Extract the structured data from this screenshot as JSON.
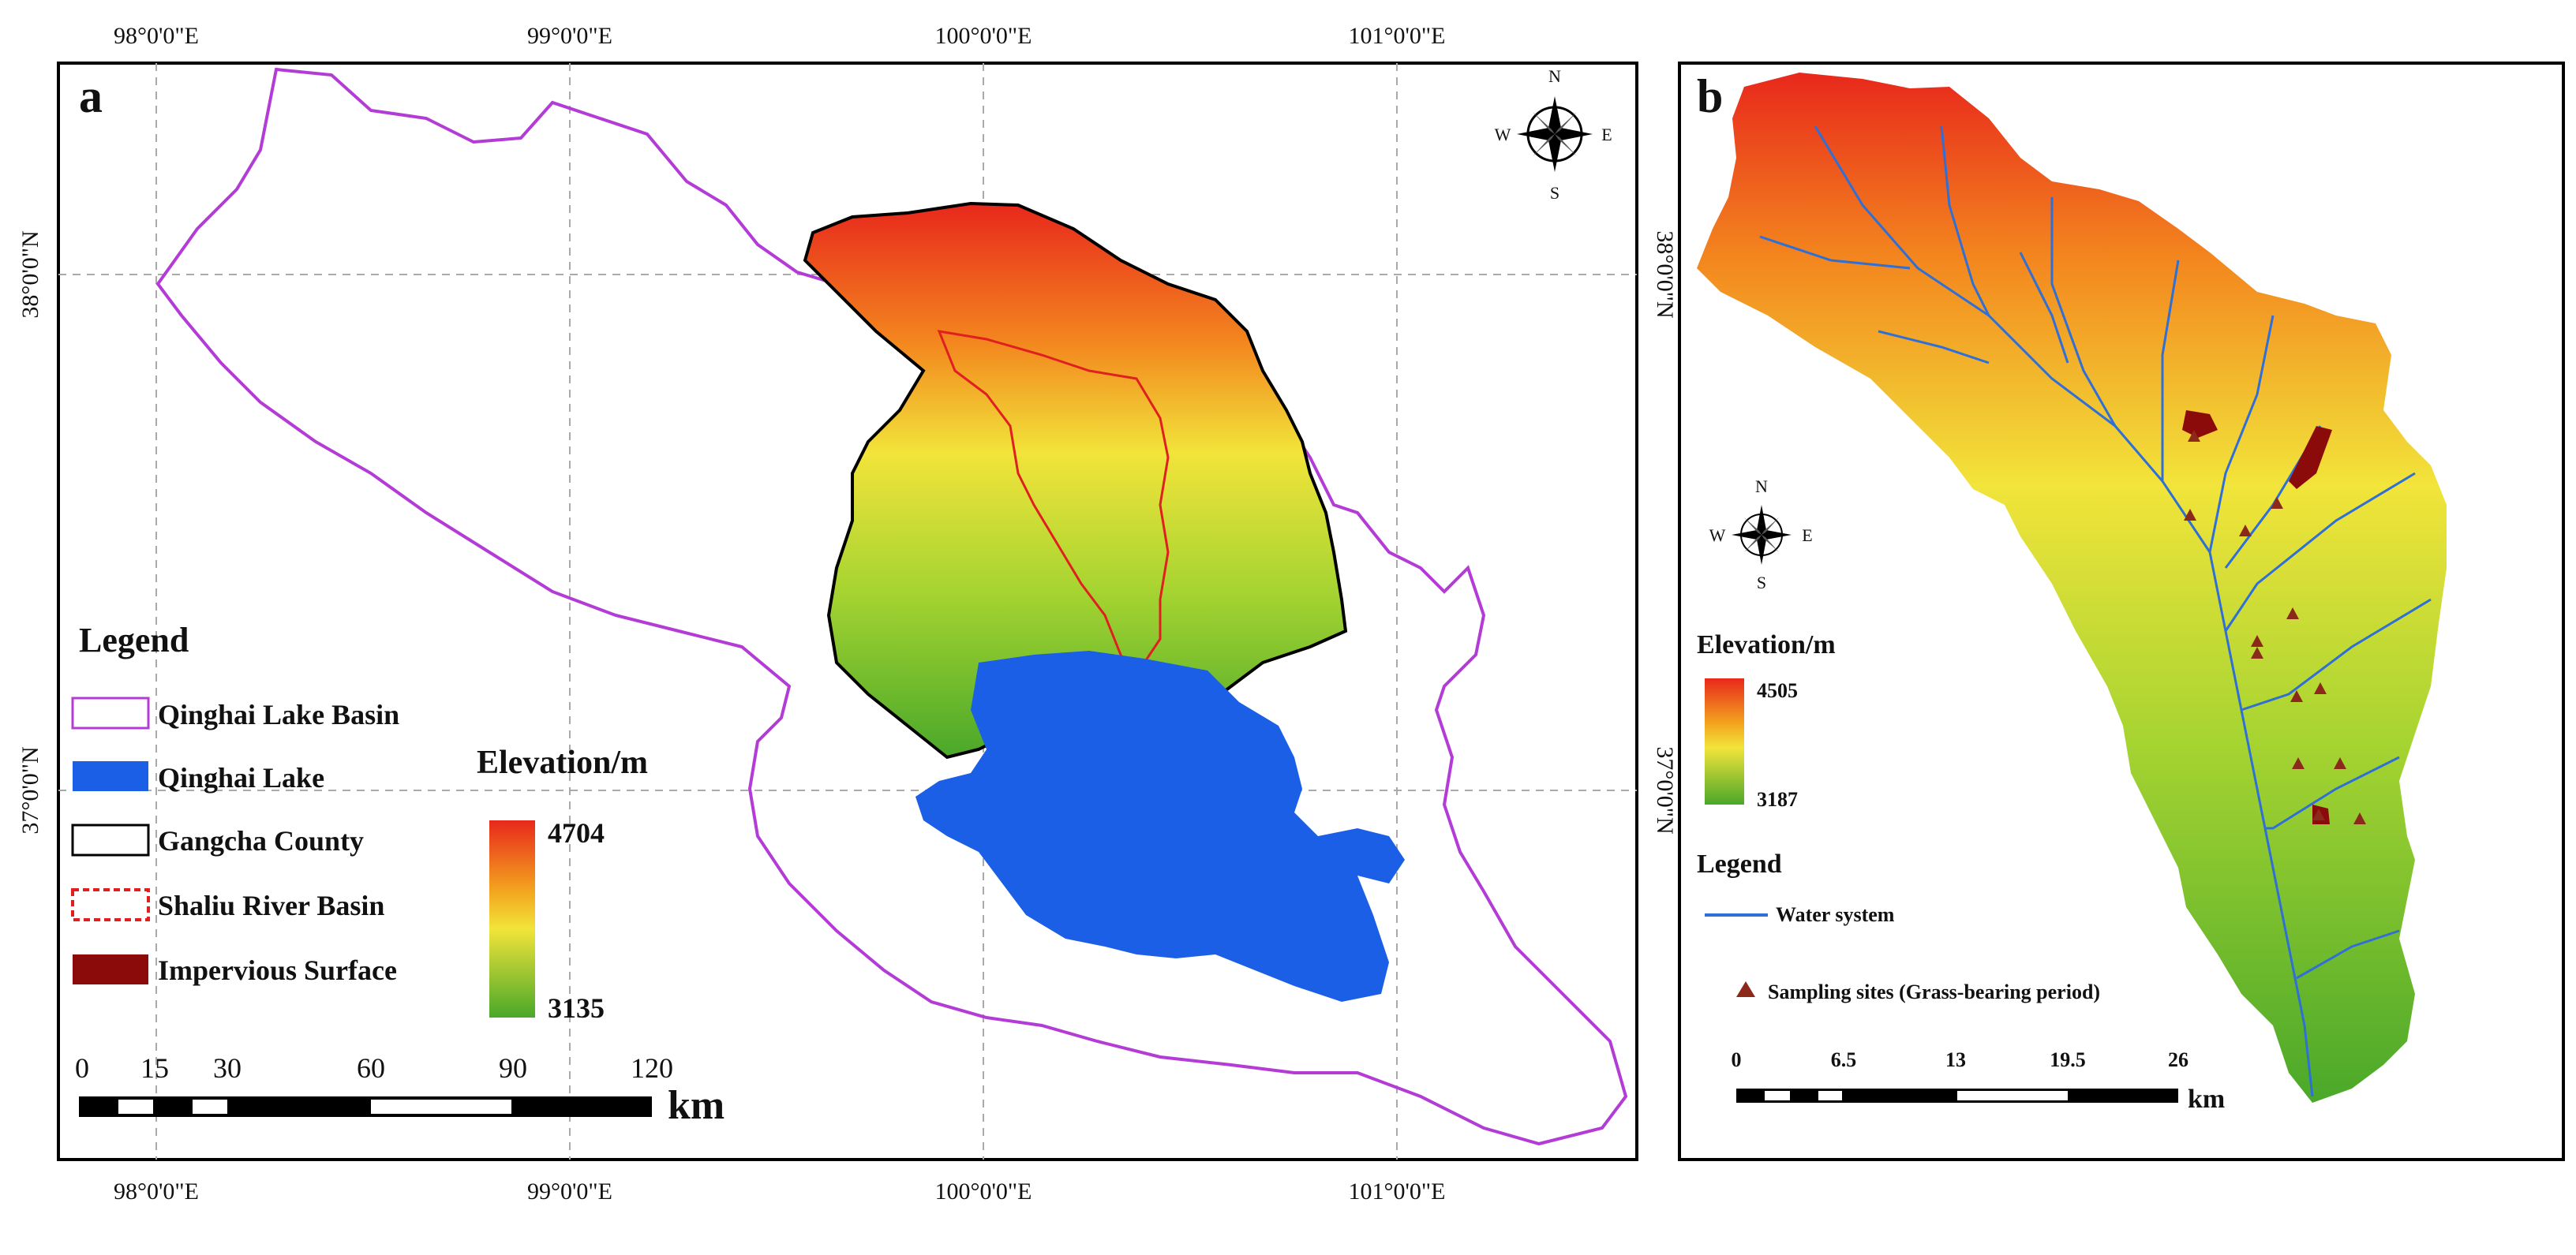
{
  "panel_a": {
    "letter": "a",
    "top_lon_labels": [
      "98°0'0\"E",
      "99°0'0\"E",
      "100°0'0\"E",
      "101°0'0\"E"
    ],
    "bottom_lon_labels": [
      "98°0'0\"E",
      "99°0'0\"E",
      "100°0'0\"E",
      "101°0'0\"E"
    ],
    "left_lat_labels": [
      "38°0'0\"N",
      "37°0'0\"N"
    ],
    "right_lat_labels": [
      "38°0'0\"N",
      "37°0'0\"N"
    ],
    "compass": {
      "n": "N",
      "s": "S",
      "e": "E",
      "w": "W"
    },
    "legend": {
      "title": "Legend",
      "items": [
        {
          "label": "Qinghai Lake Basin",
          "color": "#b43cd6"
        },
        {
          "label": "Qinghai Lake",
          "color": "#1a5fe6"
        },
        {
          "label": "Gangcha County",
          "color": "#000000"
        },
        {
          "label": "Shaliu River Basin",
          "color": "#e02020"
        },
        {
          "label": "Impervious Surface",
          "color": "#8b0a0a"
        }
      ]
    },
    "elevation": {
      "title": "Elevation/m",
      "max": "4704",
      "min": "3135"
    },
    "scale": {
      "ticks": [
        "0",
        "15",
        "30",
        "60",
        "90",
        "120"
      ],
      "unit": "km"
    }
  },
  "panel_b": {
    "letter": "b",
    "compass": {
      "n": "N",
      "s": "S",
      "e": "E",
      "w": "W"
    },
    "elevation": {
      "title": "Elevation/m",
      "max": "4505",
      "min": "3187"
    },
    "legend": {
      "title": "Legend",
      "water_label": "Water system",
      "sampling_label": "Sampling sites (Grass-bearing period)",
      "water_color": "#2f6fd6",
      "sampling_color": "#8b2a1a"
    },
    "scale": {
      "ticks": [
        "0",
        "6.5",
        "13",
        "19.5",
        "26"
      ],
      "unit": "km"
    }
  },
  "colors": {
    "elevation_high": "#e8281c",
    "elevation_mid": "#f2e43a",
    "elevation_low": "#4aa82a"
  }
}
